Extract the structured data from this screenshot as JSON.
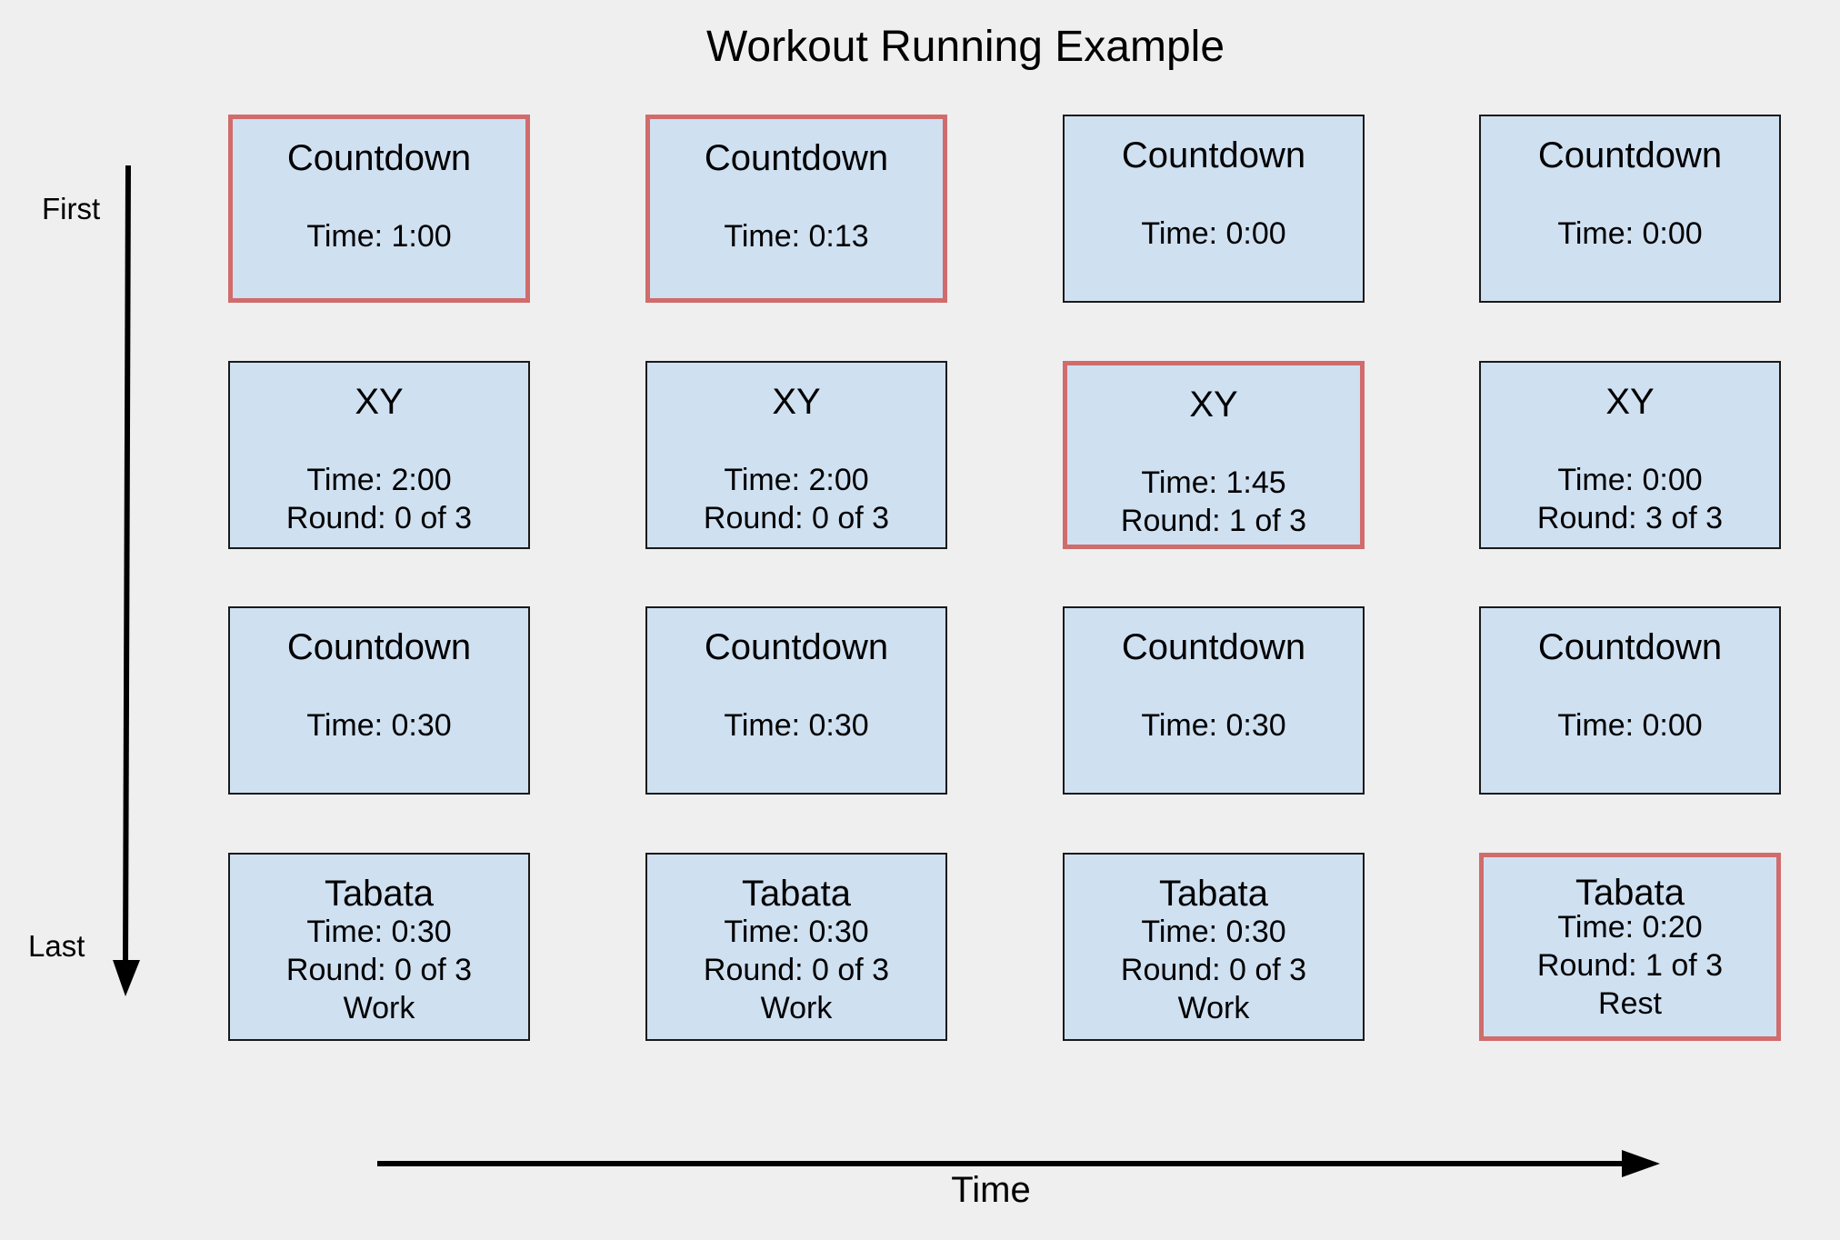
{
  "title": "Workout Running Example",
  "axes": {
    "first_label": "First",
    "last_label": "Last",
    "time_label": "Time"
  },
  "colors": {
    "background": "#efefef",
    "card_fill": "#cfe0f1",
    "card_border": "#1a1a1a",
    "active_border": "#d06c6c"
  },
  "columns": [
    {
      "cards": [
        {
          "name": "Countdown",
          "lines": [
            "Time: 1:00"
          ],
          "active": true
        },
        {
          "name": "XY",
          "lines": [
            "Time: 2:00",
            "Round: 0 of 3"
          ],
          "active": false
        },
        {
          "name": "Countdown",
          "lines": [
            "Time: 0:30"
          ],
          "active": false
        },
        {
          "name": "Tabata",
          "lines": [
            "Time: 0:30",
            "Round: 0 of 3",
            "Work"
          ],
          "active": false
        }
      ]
    },
    {
      "cards": [
        {
          "name": "Countdown",
          "lines": [
            "Time: 0:13"
          ],
          "active": true
        },
        {
          "name": "XY",
          "lines": [
            "Time: 2:00",
            "Round: 0 of 3"
          ],
          "active": false
        },
        {
          "name": "Countdown",
          "lines": [
            "Time: 0:30"
          ],
          "active": false
        },
        {
          "name": "Tabata",
          "lines": [
            "Time: 0:30",
            "Round: 0 of 3",
            "Work"
          ],
          "active": false
        }
      ]
    },
    {
      "cards": [
        {
          "name": "Countdown",
          "lines": [
            "Time: 0:00"
          ],
          "active": false
        },
        {
          "name": "XY",
          "lines": [
            "Time: 1:45",
            "Round: 1 of 3"
          ],
          "active": true
        },
        {
          "name": "Countdown",
          "lines": [
            "Time: 0:30"
          ],
          "active": false
        },
        {
          "name": "Tabata",
          "lines": [
            "Time: 0:30",
            "Round: 0 of 3",
            "Work"
          ],
          "active": false
        }
      ]
    },
    {
      "cards": [
        {
          "name": "Countdown",
          "lines": [
            "Time: 0:00"
          ],
          "active": false
        },
        {
          "name": "XY",
          "lines": [
            "Time: 0:00",
            "Round: 3 of 3"
          ],
          "active": false
        },
        {
          "name": "Countdown",
          "lines": [
            "Time: 0:00"
          ],
          "active": false
        },
        {
          "name": "Tabata",
          "lines": [
            "Time: 0:20",
            "Round: 1 of 3",
            "Rest"
          ],
          "active": true
        }
      ]
    }
  ]
}
